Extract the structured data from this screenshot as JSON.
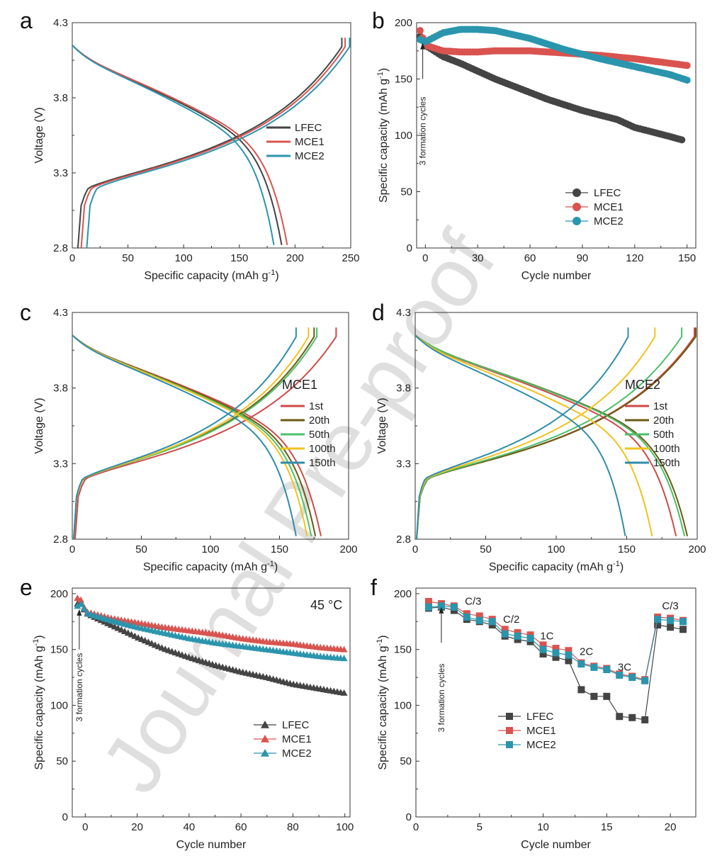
{
  "watermark": "Journal Pre-proof",
  "colors": {
    "LFEC": "#444444",
    "MCE1": "#d9534f",
    "MCE2": "#2a95ad",
    "1st": "#cf4a48",
    "20th": "#6b5a12",
    "50th": "#4cbf6b",
    "100th": "#f2c21c",
    "150th": "#2f8cab"
  },
  "chart_data": [
    {
      "id": "a",
      "panel_letter": "a",
      "type": "line",
      "xlabel": "Specific capacity (mAh g",
      "xlabel_sup": "-1",
      "xlabel_end": ")",
      "ylabel": "Voltage (V)",
      "xlim": [
        0,
        250
      ],
      "ylim": [
        2.8,
        4.3
      ],
      "xticks": [
        "0",
        "50",
        "100",
        "150",
        "200",
        "250"
      ],
      "xtick_values": [
        0,
        50,
        100,
        150,
        200,
        250
      ],
      "yticks": [
        "2.8",
        "3.3",
        "3.8",
        "4.3"
      ],
      "ytick_values": [
        2.8,
        3.3,
        3.8,
        4.3
      ],
      "legend": [
        "LFEC",
        "MCE1",
        "MCE2"
      ],
      "series": [
        {
          "name": "LFEC",
          "charge_end": 242,
          "discharge_end": 188,
          "shift": 5
        },
        {
          "name": "MCE1",
          "charge_end": 245,
          "discharge_end": 193,
          "shift": 8
        },
        {
          "name": "MCE2",
          "charge_end": 249,
          "discharge_end": 181,
          "shift": 13
        }
      ]
    },
    {
      "id": "b",
      "panel_letter": "b",
      "type": "scatter",
      "xlabel": "Cycle number",
      "ylabel": "Specific capacity (mAh g",
      "ylabel_sup": "-1",
      "ylabel_end": ")",
      "xlim": [
        -5,
        155
      ],
      "ylim": [
        0,
        200
      ],
      "xticks": [
        "0",
        "30",
        "60",
        "90",
        "120",
        "150"
      ],
      "xtick_values": [
        0,
        30,
        60,
        90,
        120,
        150
      ],
      "yticks": [
        "0",
        "50",
        "100",
        "150",
        "200"
      ],
      "ytick_values": [
        0,
        50,
        100,
        150,
        200
      ],
      "annotation": "3 formation cycles",
      "legend": [
        "LFEC",
        "MCE1",
        "MCE2"
      ],
      "series": [
        {
          "name": "LFEC",
          "x": [
            -3,
            0,
            10,
            20,
            30,
            40,
            50,
            60,
            70,
            80,
            90,
            100,
            110,
            120,
            130,
            140,
            147
          ],
          "y": [
            188,
            180,
            170,
            164,
            157,
            150,
            144,
            138,
            132,
            127,
            122,
            118,
            114,
            107,
            103,
            99,
            96
          ]
        },
        {
          "name": "MCE1",
          "x": [
            -3,
            0,
            10,
            20,
            30,
            40,
            60,
            80,
            100,
            120,
            140,
            150
          ],
          "y": [
            193,
            180,
            175,
            174,
            174,
            175,
            175,
            173,
            171,
            168,
            164,
            162
          ]
        },
        {
          "name": "MCE2",
          "x": [
            -3,
            0,
            10,
            20,
            30,
            40,
            60,
            80,
            100,
            120,
            140,
            150
          ],
          "y": [
            185,
            183,
            191,
            194,
            194,
            193,
            186,
            176,
            168,
            161,
            154,
            149
          ]
        }
      ]
    },
    {
      "id": "c",
      "panel_letter": "c",
      "type": "line",
      "label": "MCE1",
      "xlabel": "Specific capacity (mAh g",
      "xlabel_sup": "-1",
      "xlabel_end": ")",
      "ylabel": "Voltage (V)",
      "xlim": [
        0,
        200
      ],
      "ylim": [
        2.8,
        4.3
      ],
      "xticks": [
        "0",
        "50",
        "100",
        "150",
        "200"
      ],
      "xtick_values": [
        0,
        50,
        100,
        150,
        200
      ],
      "yticks": [
        "2.8",
        "3.3",
        "3.8",
        "4.3"
      ],
      "ytick_values": [
        2.8,
        3.3,
        3.8,
        4.3
      ],
      "legend": [
        "1st",
        "20th",
        "50th",
        "100th",
        "150th"
      ],
      "series": [
        {
          "name": "1st",
          "charge_end": 191,
          "discharge_end": 180,
          "shift": 2
        },
        {
          "name": "20th",
          "charge_end": 175,
          "discharge_end": 176,
          "shift": 1
        },
        {
          "name": "50th",
          "charge_end": 177,
          "discharge_end": 173,
          "shift": 1
        },
        {
          "name": "100th",
          "charge_end": 171,
          "discharge_end": 170,
          "shift": 1
        },
        {
          "name": "150th",
          "charge_end": 162,
          "discharge_end": 162,
          "shift": 1
        }
      ]
    },
    {
      "id": "d",
      "panel_letter": "d",
      "type": "line",
      "label": "MCE2",
      "xlabel": "Specific capacity (mAh g",
      "xlabel_sup": "-1",
      "xlabel_end": ")",
      "ylabel": "Voltage (V)",
      "xlim": [
        0,
        200
      ],
      "ylim": [
        2.8,
        4.3
      ],
      "xticks": [
        "0",
        "50",
        "100",
        "150",
        "200"
      ],
      "xtick_values": [
        0,
        50,
        100,
        150,
        200
      ],
      "yticks": [
        "2.8",
        "3.3",
        "3.8",
        "4.3"
      ],
      "ytick_values": [
        2.8,
        3.3,
        3.8,
        4.3
      ],
      "legend": [
        "1st",
        "20th",
        "50th",
        "100th",
        "150th"
      ],
      "series": [
        {
          "name": "1st",
          "charge_end": 198,
          "discharge_end": 185,
          "shift": 1
        },
        {
          "name": "20th",
          "charge_end": 199,
          "discharge_end": 193,
          "shift": 1
        },
        {
          "name": "50th",
          "charge_end": 189,
          "discharge_end": 191,
          "shift": 1
        },
        {
          "name": "100th",
          "charge_end": 170,
          "discharge_end": 168,
          "shift": 1
        },
        {
          "name": "150th",
          "charge_end": 151,
          "discharge_end": 149,
          "shift": 1
        }
      ]
    },
    {
      "id": "e",
      "panel_letter": "e",
      "type": "scatter",
      "label": "45 °C",
      "xlabel": "Cycle number",
      "ylabel": "Specific capacity (mAh g",
      "ylabel_sup": "-1",
      "ylabel_end": ")",
      "xlim": [
        -5,
        102
      ],
      "ylim": [
        0,
        205
      ],
      "xticks": [
        "0",
        "20",
        "40",
        "60",
        "80",
        "100"
      ],
      "xtick_values": [
        0,
        20,
        40,
        60,
        80,
        100
      ],
      "yticks": [
        "0",
        "50",
        "100",
        "150",
        "200"
      ],
      "ytick_values": [
        0,
        50,
        100,
        150,
        200
      ],
      "annotation": "3 formation cycles",
      "legend": [
        "LFEC",
        "MCE1",
        "MCE2"
      ],
      "series": [
        {
          "name": "LFEC",
          "x": [
            -3,
            -2,
            -1,
            0,
            10,
            20,
            30,
            40,
            50,
            60,
            70,
            80,
            90,
            100
          ],
          "y": [
            191,
            192,
            190,
            183,
            172,
            161,
            151,
            143,
            136,
            130,
            125,
            119,
            115,
            111
          ]
        },
        {
          "name": "MCE1",
          "x": [
            -3,
            -2,
            -1,
            0,
            10,
            20,
            30,
            40,
            50,
            60,
            70,
            80,
            90,
            100
          ],
          "y": [
            196,
            195,
            193,
            184,
            178,
            174,
            170,
            167,
            164,
            160,
            157,
            155,
            152,
            150
          ]
        },
        {
          "name": "MCE2",
          "x": [
            -3,
            -2,
            -1,
            0,
            10,
            20,
            30,
            40,
            50,
            60,
            70,
            80,
            90,
            100
          ],
          "y": [
            189,
            190,
            192,
            183,
            176,
            170,
            165,
            160,
            156,
            153,
            150,
            147,
            144,
            142
          ]
        }
      ]
    },
    {
      "id": "f",
      "panel_letter": "f",
      "type": "scatter",
      "xlabel": "Cycle number",
      "ylabel": "Specific capacity (mAh g",
      "ylabel_sup": "-1",
      "ylabel_end": ")",
      "xlim": [
        0,
        22
      ],
      "ylim": [
        0,
        205
      ],
      "xticks": [
        "0",
        "5",
        "10",
        "15",
        "20"
      ],
      "xtick_values": [
        0,
        5,
        10,
        15,
        20
      ],
      "yticks": [
        "0",
        "50",
        "100",
        "150",
        "200"
      ],
      "ytick_values": [
        0,
        50,
        100,
        150,
        200
      ],
      "annotation": "3 formation cycles",
      "rate_labels": [
        {
          "text": "C/3",
          "x": 4.5,
          "y": 190
        },
        {
          "text": "C/2",
          "x": 7.5,
          "y": 174
        },
        {
          "text": "1C",
          "x": 10.3,
          "y": 159
        },
        {
          "text": "2C",
          "x": 13.4,
          "y": 145
        },
        {
          "text": "3C",
          "x": 16.4,
          "y": 131
        },
        {
          "text": "C/3",
          "x": 20.0,
          "y": 186
        }
      ],
      "legend": [
        "LFEC",
        "MCE1",
        "MCE2"
      ],
      "series": [
        {
          "name": "LFEC",
          "x": [
            1,
            2,
            3,
            4,
            5,
            6,
            7,
            8,
            9,
            10,
            11,
            12,
            13,
            14,
            15,
            16,
            17,
            18,
            19,
            20,
            21
          ],
          "y": [
            187,
            188,
            185,
            177,
            175,
            172,
            162,
            159,
            157,
            146,
            143,
            140,
            114,
            108,
            108,
            90,
            89,
            87,
            172,
            170,
            168
          ]
        },
        {
          "name": "MCE1",
          "x": [
            1,
            2,
            3,
            4,
            5,
            6,
            7,
            8,
            9,
            10,
            11,
            12,
            13,
            14,
            15,
            16,
            17,
            18,
            19,
            20,
            21
          ],
          "y": [
            193,
            191,
            189,
            182,
            180,
            177,
            168,
            165,
            163,
            154,
            151,
            149,
            138,
            135,
            133,
            128,
            126,
            123,
            179,
            178,
            176
          ]
        },
        {
          "name": "MCE2",
          "x": [
            1,
            2,
            3,
            4,
            5,
            6,
            7,
            8,
            9,
            10,
            11,
            12,
            13,
            14,
            15,
            16,
            17,
            18,
            19,
            20,
            21
          ],
          "y": [
            188,
            189,
            188,
            179,
            176,
            175,
            164,
            162,
            160,
            150,
            147,
            145,
            137,
            134,
            132,
            127,
            125,
            122,
            177,
            176,
            175
          ]
        }
      ]
    }
  ]
}
